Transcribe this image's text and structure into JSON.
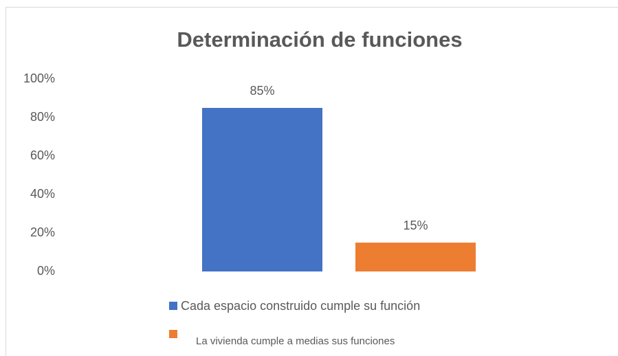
{
  "chart_data": {
    "type": "bar",
    "title": "Determinación de funciones",
    "categories": [
      null
    ],
    "series": [
      {
        "name": "Cada espacio construido cumple su función",
        "color": "#4472c4",
        "values": [
          85
        ],
        "value_labels": [
          "85%"
        ]
      },
      {
        "name": "La vivienda cumple a medias sus funciones",
        "color": "#ed7d31",
        "values": [
          15
        ],
        "value_labels": [
          "15%"
        ]
      }
    ],
    "ylim": [
      0,
      100
    ],
    "yticks": [
      {
        "value": 0,
        "label": "0%"
      },
      {
        "value": 20,
        "label": "20%"
      },
      {
        "value": 40,
        "label": "40%"
      },
      {
        "value": 60,
        "label": "60%"
      },
      {
        "value": 80,
        "label": "80%"
      },
      {
        "value": 100,
        "label": "100%"
      }
    ],
    "grid": false
  }
}
